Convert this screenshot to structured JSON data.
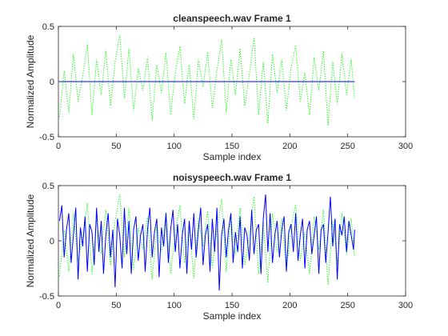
{
  "chart_data": [
    {
      "type": "line",
      "title": "cleanspeech.wav Frame 1",
      "xlabel": "Sample index",
      "ylabel": "Normalized Amplitude",
      "xlim": [
        0,
        300
      ],
      "ylim": [
        -0.5,
        0.5
      ],
      "xticks": [
        "0",
        "50",
        "100",
        "150",
        "200",
        "250",
        "300"
      ],
      "yticks": [
        "-0.5",
        "0",
        "0.5"
      ],
      "grid": false,
      "series": [
        {
          "style": "dotted",
          "color": "#00ff00",
          "x": [
            1,
            5,
            9,
            13,
            17,
            21,
            25,
            29,
            33,
            37,
            41,
            45,
            49,
            53,
            57,
            61,
            65,
            69,
            73,
            77,
            81,
            85,
            89,
            93,
            97,
            101,
            105,
            109,
            113,
            117,
            121,
            125,
            129,
            133,
            137,
            141,
            145,
            149,
            153,
            157,
            161,
            165,
            169,
            173,
            177,
            181,
            185,
            189,
            193,
            197,
            201,
            205,
            209,
            213,
            217,
            221,
            225,
            229,
            233,
            237,
            241,
            245,
            249,
            253,
            256
          ],
          "values": [
            -0.32,
            0.1,
            -0.28,
            0.25,
            -0.18,
            0.05,
            0.34,
            -0.3,
            0.2,
            -0.12,
            0.28,
            -0.22,
            0.18,
            0.42,
            -0.15,
            0.3,
            -0.26,
            0.12,
            -0.08,
            0.22,
            -0.35,
            0.15,
            -0.1,
            0.26,
            -0.3,
            0.08,
            0.32,
            -0.2,
            0.16,
            -0.34,
            0.2,
            -0.05,
            0.27,
            -0.24,
            0.1,
            0.38,
            -0.28,
            0.2,
            -0.12,
            0.3,
            -0.22,
            0.06,
            0.4,
            -0.3,
            0.18,
            -0.38,
            0.25,
            -0.1,
            0.2,
            -0.26,
            0.12,
            0.33,
            -0.18,
            0.08,
            -0.3,
            0.22,
            -0.08,
            0.28,
            -0.4,
            0.18,
            -0.2,
            0.25,
            -0.12,
            0.2,
            -0.15
          ]
        },
        {
          "style": "solid",
          "color": "#0000ff",
          "x": [
            1,
            256
          ],
          "values": [
            0,
            0
          ]
        }
      ]
    },
    {
      "type": "line",
      "title": "noisyspeech.wav Frame 1",
      "xlabel": "Sample index",
      "ylabel": "Normalized Amplitude",
      "xlim": [
        0,
        300
      ],
      "ylim": [
        -0.5,
        0.5
      ],
      "xticks": [
        "0",
        "50",
        "100",
        "150",
        "200",
        "250",
        "300"
      ],
      "yticks": [
        "-0.5",
        "0",
        "0.5"
      ],
      "grid": false,
      "series": [
        {
          "style": "dotted",
          "color": "#00ff00",
          "x": [
            1,
            5,
            9,
            13,
            17,
            21,
            25,
            29,
            33,
            37,
            41,
            45,
            49,
            53,
            57,
            61,
            65,
            69,
            73,
            77,
            81,
            85,
            89,
            93,
            97,
            101,
            105,
            109,
            113,
            117,
            121,
            125,
            129,
            133,
            137,
            141,
            145,
            149,
            153,
            157,
            161,
            165,
            169,
            173,
            177,
            181,
            185,
            189,
            193,
            197,
            201,
            205,
            209,
            213,
            217,
            221,
            225,
            229,
            233,
            237,
            241,
            245,
            249,
            253,
            256
          ],
          "values": [
            -0.32,
            0.1,
            -0.28,
            0.25,
            -0.18,
            0.05,
            0.34,
            -0.3,
            0.2,
            -0.12,
            0.28,
            -0.22,
            0.18,
            0.42,
            -0.15,
            0.3,
            -0.26,
            0.12,
            -0.08,
            0.22,
            -0.35,
            0.15,
            -0.1,
            0.26,
            -0.3,
            0.08,
            0.32,
            -0.2,
            0.16,
            -0.34,
            0.2,
            -0.05,
            0.27,
            -0.24,
            0.1,
            0.38,
            -0.28,
            0.2,
            -0.12,
            0.3,
            -0.22,
            0.06,
            0.4,
            -0.3,
            0.18,
            -0.38,
            0.25,
            -0.1,
            0.2,
            -0.26,
            0.12,
            0.33,
            -0.18,
            0.08,
            -0.3,
            0.22,
            -0.08,
            0.28,
            -0.4,
            0.18,
            -0.2,
            0.25,
            -0.12,
            0.2,
            -0.15
          ]
        },
        {
          "style": "solid",
          "color": "#0000ff",
          "x": [
            1,
            3,
            5,
            7,
            9,
            11,
            13,
            15,
            17,
            19,
            21,
            23,
            25,
            27,
            29,
            31,
            33,
            35,
            37,
            39,
            41,
            43,
            45,
            47,
            49,
            51,
            53,
            55,
            57,
            59,
            61,
            63,
            65,
            67,
            69,
            71,
            73,
            75,
            77,
            79,
            81,
            83,
            85,
            87,
            89,
            91,
            93,
            95,
            97,
            99,
            101,
            103,
            105,
            107,
            109,
            111,
            113,
            115,
            117,
            119,
            121,
            123,
            125,
            127,
            129,
            131,
            133,
            135,
            137,
            139,
            141,
            143,
            145,
            147,
            149,
            151,
            153,
            155,
            157,
            159,
            161,
            163,
            165,
            167,
            169,
            171,
            173,
            175,
            177,
            179,
            181,
            183,
            185,
            187,
            189,
            191,
            193,
            195,
            197,
            199,
            201,
            203,
            205,
            207,
            209,
            211,
            213,
            215,
            217,
            219,
            221,
            223,
            225,
            227,
            229,
            231,
            233,
            235,
            237,
            239,
            241,
            243,
            245,
            247,
            249,
            251,
            253,
            255,
            256
          ],
          "values": [
            0.18,
            0.32,
            -0.15,
            0.1,
            0.25,
            -0.2,
            0.05,
            0.3,
            -0.35,
            0.12,
            -0.05,
            0.22,
            -0.28,
            0.15,
            0.08,
            -0.22,
            0.3,
            -0.1,
            0.18,
            -0.3,
            0.05,
            0.25,
            -0.15,
            0.1,
            -0.42,
            0.2,
            0.05,
            -0.25,
            0.3,
            -0.12,
            0.18,
            -0.3,
            0.1,
            0.22,
            -0.18,
            0.05,
            0.15,
            -0.28,
            0.1,
            0.3,
            -0.15,
            0.08,
            0.2,
            -0.33,
            0.12,
            -0.05,
            0.25,
            -0.2,
            0.1,
            0.28,
            -0.1,
            0.15,
            -0.25,
            0.05,
            0.2,
            -0.3,
            0.18,
            -0.08,
            0.25,
            -0.15,
            0.1,
            0.3,
            -0.22,
            0.05,
            0.15,
            -0.28,
            0.2,
            -0.1,
            0.3,
            -0.45,
            0.05,
            0.2,
            -0.15,
            0.1,
            0.25,
            -0.2,
            0.08,
            -0.1,
            0.22,
            -0.25,
            0.12,
            0.05,
            -0.18,
            0.28,
            -0.12,
            0.1,
            0.15,
            -0.3,
            0.2,
            0.42,
            -0.1,
            0.25,
            -0.2,
            0.05,
            0.18,
            -0.15,
            0.1,
            0.22,
            -0.28,
            0.08,
            0.15,
            -0.1,
            0.25,
            -0.18,
            0.05,
            0.2,
            -0.25,
            0.1,
            0.18,
            -0.12,
            0.05,
            0.22,
            -0.3,
            0.1,
            0.15,
            -0.2,
            0.08,
            0.4,
            -0.05,
            0.2,
            -0.35,
            0.15,
            0.05,
            0.22,
            -0.1,
            0.18,
            0.05,
            -0.08,
            0.1
          ]
        }
      ]
    }
  ]
}
